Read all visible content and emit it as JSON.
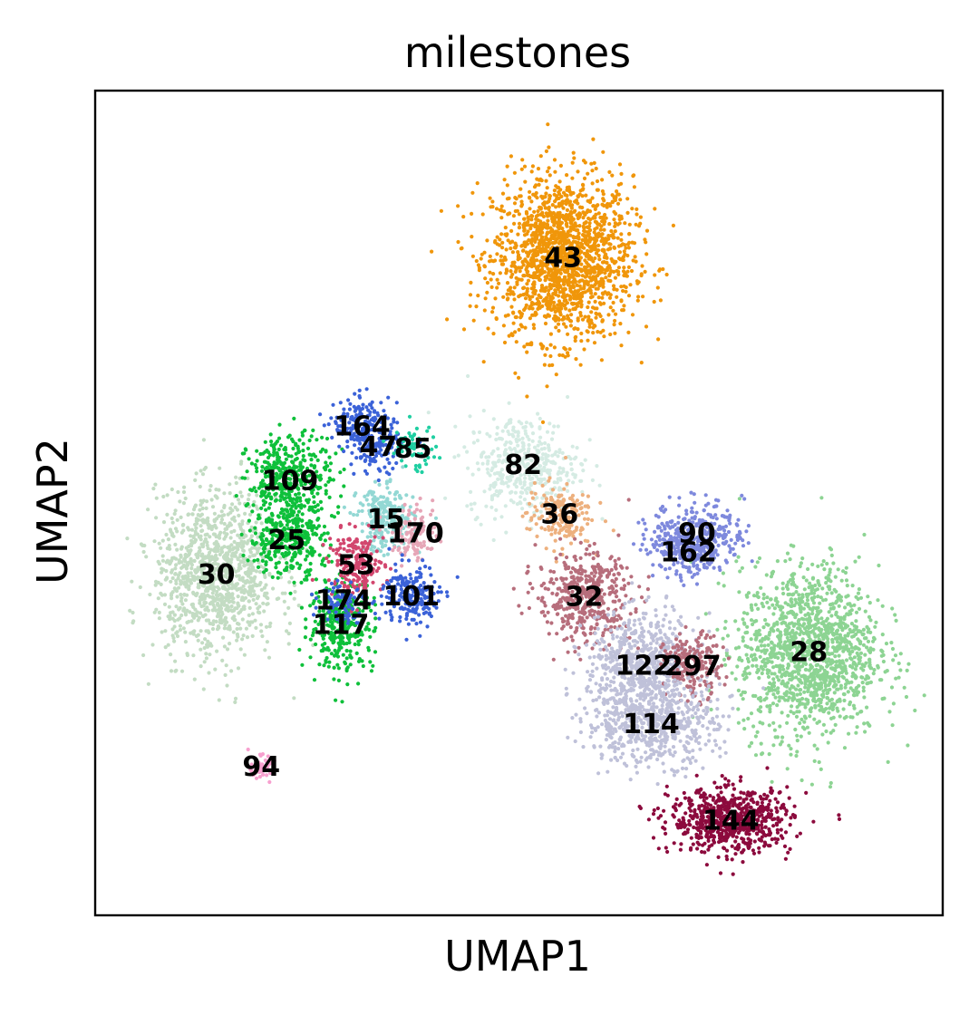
{
  "chart_data": {
    "type": "scatter",
    "title": "milestones",
    "xlabel": "UMAP1",
    "ylabel": "UMAP2",
    "xlim": [
      0,
      100
    ],
    "ylim": [
      0,
      100
    ],
    "grid": false,
    "legend": "none (labels on data)",
    "clusters": [
      {
        "label": "43",
        "color": "#f0960a",
        "x": 55.2,
        "y": 79.7,
        "spread": [
          7.5,
          9.0
        ],
        "count": 1700
      },
      {
        "label": "82",
        "color": "#d5ebe3",
        "x": 50.5,
        "y": 54.6,
        "spread": [
          6.0,
          5.5
        ],
        "count": 420
      },
      {
        "label": "36",
        "color": "#edb07e",
        "x": 54.8,
        "y": 48.6,
        "spread": [
          3.5,
          3.5
        ],
        "count": 180
      },
      {
        "label": "30",
        "color": "#c3dcc3",
        "x": 14.3,
        "y": 41.3,
        "spread": [
          6.5,
          9.0
        ],
        "count": 1100
      },
      {
        "label": "109",
        "color": "#0ec03a",
        "x": 23.0,
        "y": 52.7,
        "spread": [
          4.5,
          5.0
        ],
        "count": 420
      },
      {
        "label": "25",
        "color": "#0ec03a",
        "x": 22.6,
        "y": 45.5,
        "spread": [
          4.0,
          4.0
        ],
        "count": 300
      },
      {
        "label": "117",
        "color": "#0ec03a",
        "x": 29.0,
        "y": 35.2,
        "spread": [
          3.5,
          5.0
        ],
        "count": 320
      },
      {
        "label": "164",
        "color": "#3b62d8",
        "x": 31.5,
        "y": 59.3,
        "spread": [
          3.0,
          3.0
        ],
        "count": 180
      },
      {
        "label": "47",
        "color": "#3b62d8",
        "x": 33.4,
        "y": 56.8,
        "spread": [
          2.5,
          3.0
        ],
        "count": 110
      },
      {
        "label": "85",
        "color": "#1fcfa2",
        "x": 37.5,
        "y": 56.6,
        "spread": [
          2.5,
          2.5
        ],
        "count": 60
      },
      {
        "label": "15",
        "color": "#93d8d4",
        "x": 34.3,
        "y": 48.0,
        "spread": [
          3.0,
          3.5
        ],
        "count": 260
      },
      {
        "label": "170",
        "color": "#e6a6b7",
        "x": 37.8,
        "y": 46.3,
        "spread": [
          2.5,
          3.0
        ],
        "count": 120
      },
      {
        "label": "53",
        "color": "#d2466e",
        "x": 30.8,
        "y": 42.5,
        "spread": [
          3.0,
          3.5
        ],
        "count": 200
      },
      {
        "label": "174",
        "color": "#3b62d8",
        "x": 29.3,
        "y": 38.2,
        "spread": [
          2.5,
          2.5
        ],
        "count": 90
      },
      {
        "label": "101",
        "color": "#3b62d8",
        "x": 37.3,
        "y": 38.7,
        "spread": [
          3.0,
          3.5
        ],
        "count": 200
      },
      {
        "label": "94",
        "color": "#f7a0cf",
        "x": 19.6,
        "y": 18.0,
        "spread": [
          1.2,
          1.2
        ],
        "count": 60
      },
      {
        "label": "32",
        "color": "#b76e7c",
        "x": 57.7,
        "y": 38.6,
        "spread": [
          5.0,
          5.0
        ],
        "count": 450
      },
      {
        "label": "90",
        "color": "#7e89dd",
        "x": 71.0,
        "y": 46.3,
        "spread": [
          5.0,
          3.5
        ],
        "count": 300
      },
      {
        "label": "162",
        "color": "#7e89dd",
        "x": 70.0,
        "y": 44.0,
        "spread": [
          3.5,
          3.0
        ],
        "count": 150
      },
      {
        "label": "28",
        "color": "#8dd493",
        "x": 84.2,
        "y": 31.9,
        "spread": [
          7.5,
          9.5
        ],
        "count": 1400
      },
      {
        "label": "122",
        "color": "#bfc1d9",
        "x": 64.7,
        "y": 30.3,
        "spread": [
          6.0,
          5.5
        ],
        "count": 650
      },
      {
        "label": "297",
        "color": "#b76e7c",
        "x": 70.5,
        "y": 30.2,
        "spread": [
          3.0,
          3.5
        ],
        "count": 200
      },
      {
        "label": "114",
        "color": "#bfc1d9",
        "x": 65.6,
        "y": 23.2,
        "spread": [
          7.0,
          4.5
        ],
        "count": 600
      },
      {
        "label": "144",
        "color": "#8c0a3d",
        "x": 75.0,
        "y": 11.5,
        "spread": [
          6.5,
          3.5
        ],
        "count": 700
      }
    ]
  }
}
